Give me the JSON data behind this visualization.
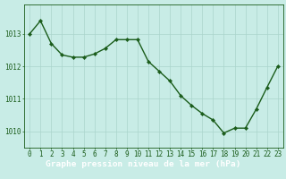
{
  "x": [
    0,
    1,
    2,
    3,
    4,
    5,
    6,
    7,
    8,
    9,
    10,
    11,
    12,
    13,
    14,
    15,
    16,
    17,
    18,
    19,
    20,
    21,
    22,
    23
  ],
  "y": [
    1013.0,
    1013.4,
    1012.7,
    1012.35,
    1012.28,
    1012.28,
    1012.38,
    1012.55,
    1012.82,
    1012.82,
    1012.82,
    1012.15,
    1011.85,
    1011.55,
    1011.1,
    1010.8,
    1010.55,
    1010.35,
    1009.95,
    1010.1,
    1010.1,
    1010.68,
    1011.35,
    1012.0
  ],
  "line_color": "#1a5c1a",
  "marker": "D",
  "marker_size": 2.2,
  "bg_color": "#c8ece6",
  "grid_color": "#aad4cc",
  "bottom_bar_color": "#2d6e2d",
  "label_color": "#1a5c1a",
  "bottom_label_color": "#ffffff",
  "xlabel": "Graphe pression niveau de la mer (hPa)",
  "xlabel_fontsize": 6.8,
  "ylim": [
    1009.5,
    1013.9
  ],
  "xlim": [
    -0.5,
    23.5
  ],
  "yticks": [
    1010,
    1011,
    1012,
    1013
  ],
  "xticks": [
    0,
    1,
    2,
    3,
    4,
    5,
    6,
    7,
    8,
    9,
    10,
    11,
    12,
    13,
    14,
    15,
    16,
    17,
    18,
    19,
    20,
    21,
    22,
    23
  ],
  "tick_fontsize": 5.5,
  "line_width": 1.0
}
